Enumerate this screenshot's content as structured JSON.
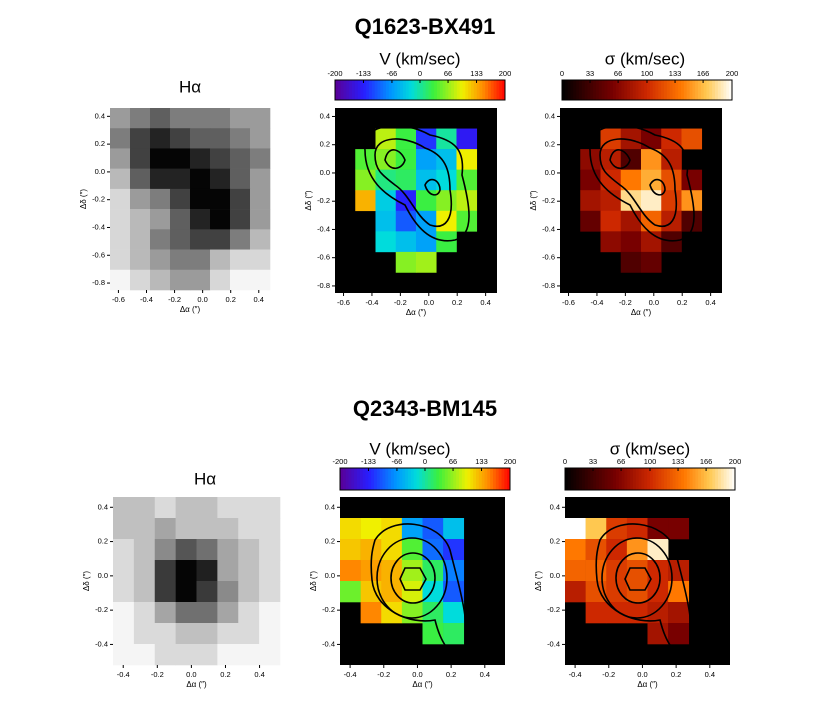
{
  "figure_titles": [
    "Q1623-BX491",
    "Q2343-BM145"
  ],
  "chart_data": [
    {
      "type": "heatmap",
      "title": "Hα",
      "xlabel": "Δα (″)",
      "ylabel": "Δδ (″)",
      "colormap": "gray",
      "xlim": [
        -0.66,
        0.48
      ],
      "ylim": [
        -0.85,
        0.46
      ],
      "xticks": [
        -0.6,
        -0.4,
        -0.2,
        {
          "value": 0,
          "label": "0.0"
        },
        0.2,
        0.4
      ],
      "yticks": [
        0.4,
        0.2,
        {
          "value": 0,
          "label": "0.0"
        },
        -0.2,
        -0.4,
        -0.6,
        -0.8
      ],
      "values": [
        [
          3,
          4,
          5,
          4,
          4,
          4,
          3,
          3
        ],
        [
          4,
          6,
          7,
          6,
          5,
          5,
          4,
          3
        ],
        [
          3,
          6,
          8,
          8,
          7,
          6,
          5,
          4
        ],
        [
          2,
          5,
          7,
          7,
          8,
          7,
          5,
          3
        ],
        [
          1,
          3,
          4,
          6,
          8,
          8,
          6,
          3
        ],
        [
          1,
          2,
          3,
          5,
          7,
          8,
          6,
          3
        ],
        [
          1,
          2,
          4,
          5,
          6,
          6,
          4,
          2
        ],
        [
          1,
          2,
          3,
          4,
          4,
          2,
          1,
          1
        ],
        [
          0,
          1,
          2,
          3,
          3,
          1,
          0,
          0
        ]
      ]
    },
    {
      "type": "heatmap",
      "title": "V (km/sec)",
      "xlabel": "Δα (″)",
      "ylabel": "Δδ (″)",
      "colormap": "rainbow",
      "xlim": [
        -0.66,
        0.48
      ],
      "ylim": [
        -0.85,
        0.46
      ],
      "clim": [
        -200,
        200
      ],
      "cticks": [
        -200,
        -133,
        -66,
        0,
        66,
        133,
        200
      ],
      "xticks": [
        -0.6,
        -0.4,
        -0.2,
        {
          "value": 0,
          "label": "0.0"
        },
        0.2,
        0.4
      ],
      "yticks": [
        0.4,
        0.2,
        {
          "value": 0,
          "label": "0.0"
        },
        -0.2,
        -0.4,
        -0.6,
        -0.8
      ],
      "values": [
        [
          null,
          null,
          null,
          null,
          null,
          null,
          null,
          null
        ],
        [
          null,
          null,
          80,
          30,
          -120,
          0,
          -140,
          null
        ],
        [
          null,
          40,
          60,
          30,
          -60,
          -40,
          100,
          null
        ],
        [
          null,
          60,
          10,
          20,
          -40,
          -20,
          40,
          null
        ],
        [
          null,
          130,
          -30,
          -130,
          30,
          60,
          80,
          null
        ],
        [
          null,
          null,
          -40,
          -100,
          -60,
          100,
          40,
          null
        ],
        [
          null,
          null,
          -20,
          -40,
          -60,
          30,
          null,
          null
        ],
        [
          null,
          null,
          null,
          60,
          70,
          null,
          null,
          null
        ],
        [
          null,
          null,
          null,
          null,
          null,
          null,
          null,
          null
        ]
      ]
    },
    {
      "type": "heatmap",
      "title": "σ (km/sec)",
      "xlabel": "Δα (″)",
      "ylabel": "Δδ (″)",
      "colormap": "hot",
      "xlim": [
        -0.66,
        0.48
      ],
      "ylim": [
        -0.85,
        0.46
      ],
      "clim": [
        0,
        200
      ],
      "cticks": [
        0,
        33,
        66,
        100,
        133,
        166,
        200
      ],
      "xticks": [
        -0.6,
        -0.4,
        -0.2,
        {
          "value": 0,
          "label": "0.0"
        },
        0.2,
        0.4
      ],
      "yticks": [
        0.4,
        0.2,
        {
          "value": 0,
          "label": "0.0"
        },
        -0.2,
        -0.4,
        -0.6,
        -0.8
      ],
      "values": [
        [
          null,
          null,
          null,
          null,
          null,
          null,
          null,
          null
        ],
        [
          null,
          null,
          110,
          80,
          60,
          100,
          120,
          null
        ],
        [
          null,
          70,
          90,
          40,
          150,
          90,
          null,
          null
        ],
        [
          null,
          60,
          100,
          140,
          160,
          120,
          60,
          null
        ],
        [
          null,
          80,
          90,
          180,
          190,
          110,
          150,
          null
        ],
        [
          null,
          50,
          100,
          80,
          130,
          90,
          40,
          null
        ],
        [
          null,
          null,
          70,
          60,
          80,
          40,
          null,
          null
        ],
        [
          null,
          null,
          null,
          40,
          50,
          null,
          null,
          null
        ],
        [
          null,
          null,
          null,
          null,
          null,
          null,
          null,
          null
        ]
      ]
    },
    {
      "type": "heatmap",
      "title": "Hα",
      "xlabel": "Δα (″)",
      "ylabel": "Δδ (″)",
      "colormap": "gray",
      "xlim": [
        -0.46,
        0.52
      ],
      "ylim": [
        -0.52,
        0.46
      ],
      "xticks": [
        -0.4,
        -0.2,
        {
          "value": 0,
          "label": "0.0"
        },
        0.2,
        0.4
      ],
      "yticks": [
        0.4,
        0.2,
        {
          "value": 0,
          "label": "0.0"
        },
        -0.2,
        -0.4
      ],
      "values": [
        [
          3,
          3,
          2,
          3,
          3,
          2,
          2,
          2
        ],
        [
          3,
          3,
          4,
          3,
          3,
          3,
          2,
          2
        ],
        [
          2,
          3,
          5,
          7,
          6,
          4,
          3,
          2
        ],
        [
          2,
          3,
          8,
          10,
          9,
          4,
          3,
          2
        ],
        [
          2,
          3,
          8,
          10,
          8,
          5,
          3,
          2
        ],
        [
          1,
          2,
          4,
          6,
          6,
          4,
          2,
          1
        ],
        [
          1,
          2,
          2,
          3,
          3,
          2,
          2,
          1
        ],
        [
          1,
          1,
          2,
          2,
          2,
          1,
          1,
          1
        ]
      ]
    },
    {
      "type": "heatmap",
      "title": "V (km/sec)",
      "xlabel": "Δα (″)",
      "ylabel": "Δδ (″)",
      "colormap": "rainbow",
      "xlim": [
        -0.46,
        0.52
      ],
      "ylim": [
        -0.52,
        0.46
      ],
      "clim": [
        -200,
        200
      ],
      "cticks": [
        -200,
        -133,
        -66,
        0,
        66,
        133,
        200
      ],
      "xticks": [
        -0.4,
        -0.2,
        {
          "value": 0,
          "label": "0.0"
        },
        0.2,
        0.4
      ],
      "yticks": [
        0.4,
        0.2,
        {
          "value": 0,
          "label": "0.0"
        },
        -0.2,
        -0.4
      ],
      "values": [
        [
          null,
          null,
          null,
          null,
          null,
          null,
          null,
          null
        ],
        [
          110,
          100,
          110,
          -60,
          -100,
          -40,
          null,
          null
        ],
        [
          120,
          130,
          110,
          40,
          -90,
          -120,
          null,
          null
        ],
        [
          150,
          140,
          130,
          70,
          20,
          -80,
          null,
          null
        ],
        [
          50,
          120,
          130,
          90,
          -20,
          -100,
          null,
          null
        ],
        [
          null,
          150,
          110,
          60,
          20,
          -20,
          null,
          null
        ],
        [
          null,
          null,
          null,
          null,
          30,
          20,
          null,
          null
        ],
        [
          null,
          null,
          null,
          null,
          null,
          null,
          null,
          null
        ]
      ]
    },
    {
      "type": "heatmap",
      "title": "σ (km/sec)",
      "xlabel": "Δα (″)",
      "ylabel": "Δδ (″)",
      "colormap": "hot",
      "xlim": [
        -0.46,
        0.52
      ],
      "ylim": [
        -0.52,
        0.46
      ],
      "clim": [
        0,
        200
      ],
      "cticks": [
        0,
        33,
        66,
        100,
        133,
        166,
        200
      ],
      "xticks": [
        -0.4,
        -0.2,
        {
          "value": 0,
          "label": "0.0"
        },
        0.2,
        0.4
      ],
      "yticks": [
        0.4,
        0.2,
        {
          "value": 0,
          "label": "0.0"
        },
        -0.2,
        -0.4
      ],
      "values": [
        [
          null,
          null,
          null,
          null,
          null,
          null,
          null,
          null
        ],
        [
          200,
          170,
          110,
          100,
          60,
          60,
          null,
          null
        ],
        [
          140,
          120,
          100,
          150,
          190,
          null,
          null,
          null
        ],
        [
          130,
          130,
          110,
          120,
          100,
          90,
          null,
          null
        ],
        [
          90,
          120,
          110,
          120,
          100,
          140,
          null,
          null
        ],
        [
          null,
          100,
          100,
          100,
          90,
          80,
          null,
          null
        ],
        [
          null,
          null,
          null,
          null,
          80,
          60,
          null,
          null
        ],
        [
          null,
          null,
          null,
          null,
          null,
          null,
          null,
          null
        ]
      ]
    }
  ]
}
